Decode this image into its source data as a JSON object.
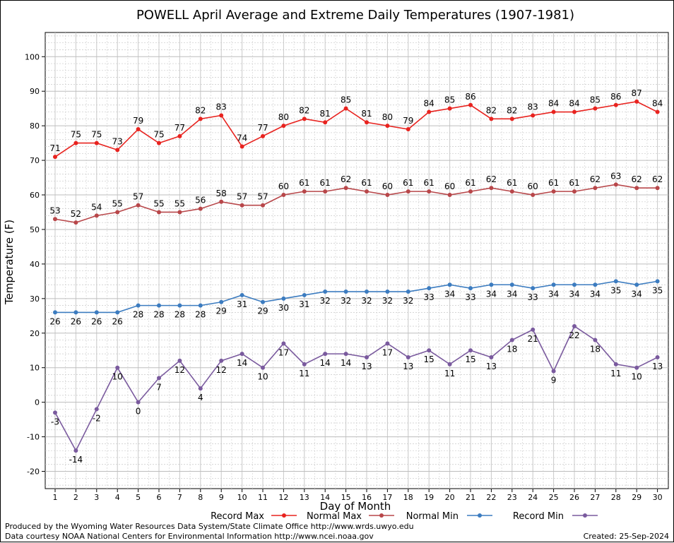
{
  "chart_data": {
    "type": "line",
    "title": "POWELL April Average and Extreme Daily Temperatures (1907-1981)",
    "xlabel": "Day of Month",
    "ylabel": "Temperature (F)",
    "ylim": [
      -25,
      107
    ],
    "yticks": [
      -20,
      -10,
      0,
      10,
      20,
      30,
      40,
      50,
      60,
      70,
      80,
      90,
      100
    ],
    "grid": true,
    "legend_position": "bottom",
    "x": [
      1,
      2,
      3,
      4,
      5,
      6,
      7,
      8,
      9,
      10,
      11,
      12,
      13,
      14,
      15,
      16,
      17,
      18,
      19,
      20,
      21,
      22,
      23,
      24,
      25,
      26,
      27,
      28,
      29,
      30
    ],
    "series": [
      {
        "name": "Record Max",
        "color": "#e8231f",
        "label_position": "above",
        "values": [
          71,
          75,
          75,
          73,
          79,
          75,
          77,
          82,
          83,
          74,
          77,
          80,
          82,
          81,
          85,
          81,
          80,
          79,
          84,
          85,
          86,
          82,
          82,
          83,
          84,
          84,
          85,
          86,
          87,
          84
        ]
      },
      {
        "name": "Normal Max",
        "color": "#b8474a",
        "label_position": "above",
        "values": [
          53,
          52,
          54,
          55,
          57,
          55,
          55,
          56,
          58,
          57,
          57,
          60,
          61,
          61,
          62,
          61,
          60,
          61,
          61,
          60,
          61,
          62,
          61,
          60,
          61,
          61,
          62,
          63,
          62,
          62
        ]
      },
      {
        "name": "Normal Min",
        "color": "#3c7cc0",
        "label_position": "below",
        "values": [
          26,
          26,
          26,
          26,
          28,
          28,
          28,
          28,
          29,
          31,
          29,
          30,
          31,
          32,
          32,
          32,
          32,
          32,
          33,
          34,
          33,
          34,
          34,
          33,
          34,
          34,
          34,
          35,
          34,
          35
        ]
      },
      {
        "name": "Record Min",
        "color": "#7a5a9e",
        "label_position": "below",
        "values": [
          -3,
          -14,
          -2,
          10,
          0,
          7,
          12,
          4,
          12,
          14,
          10,
          17,
          11,
          14,
          14,
          13,
          17,
          13,
          15,
          11,
          15,
          13,
          18,
          21,
          9,
          22,
          18,
          11,
          10,
          13
        ]
      }
    ]
  },
  "footer": {
    "line1": "Produced by the Wyoming Water Resources Data System/State Climate Office http://www.wrds.uwyo.edu",
    "line2": "Data courtesy NOAA National Centers for Environmental Information http://www.ncei.noaa.gov",
    "created": "Created:  25-Sep-2024"
  }
}
